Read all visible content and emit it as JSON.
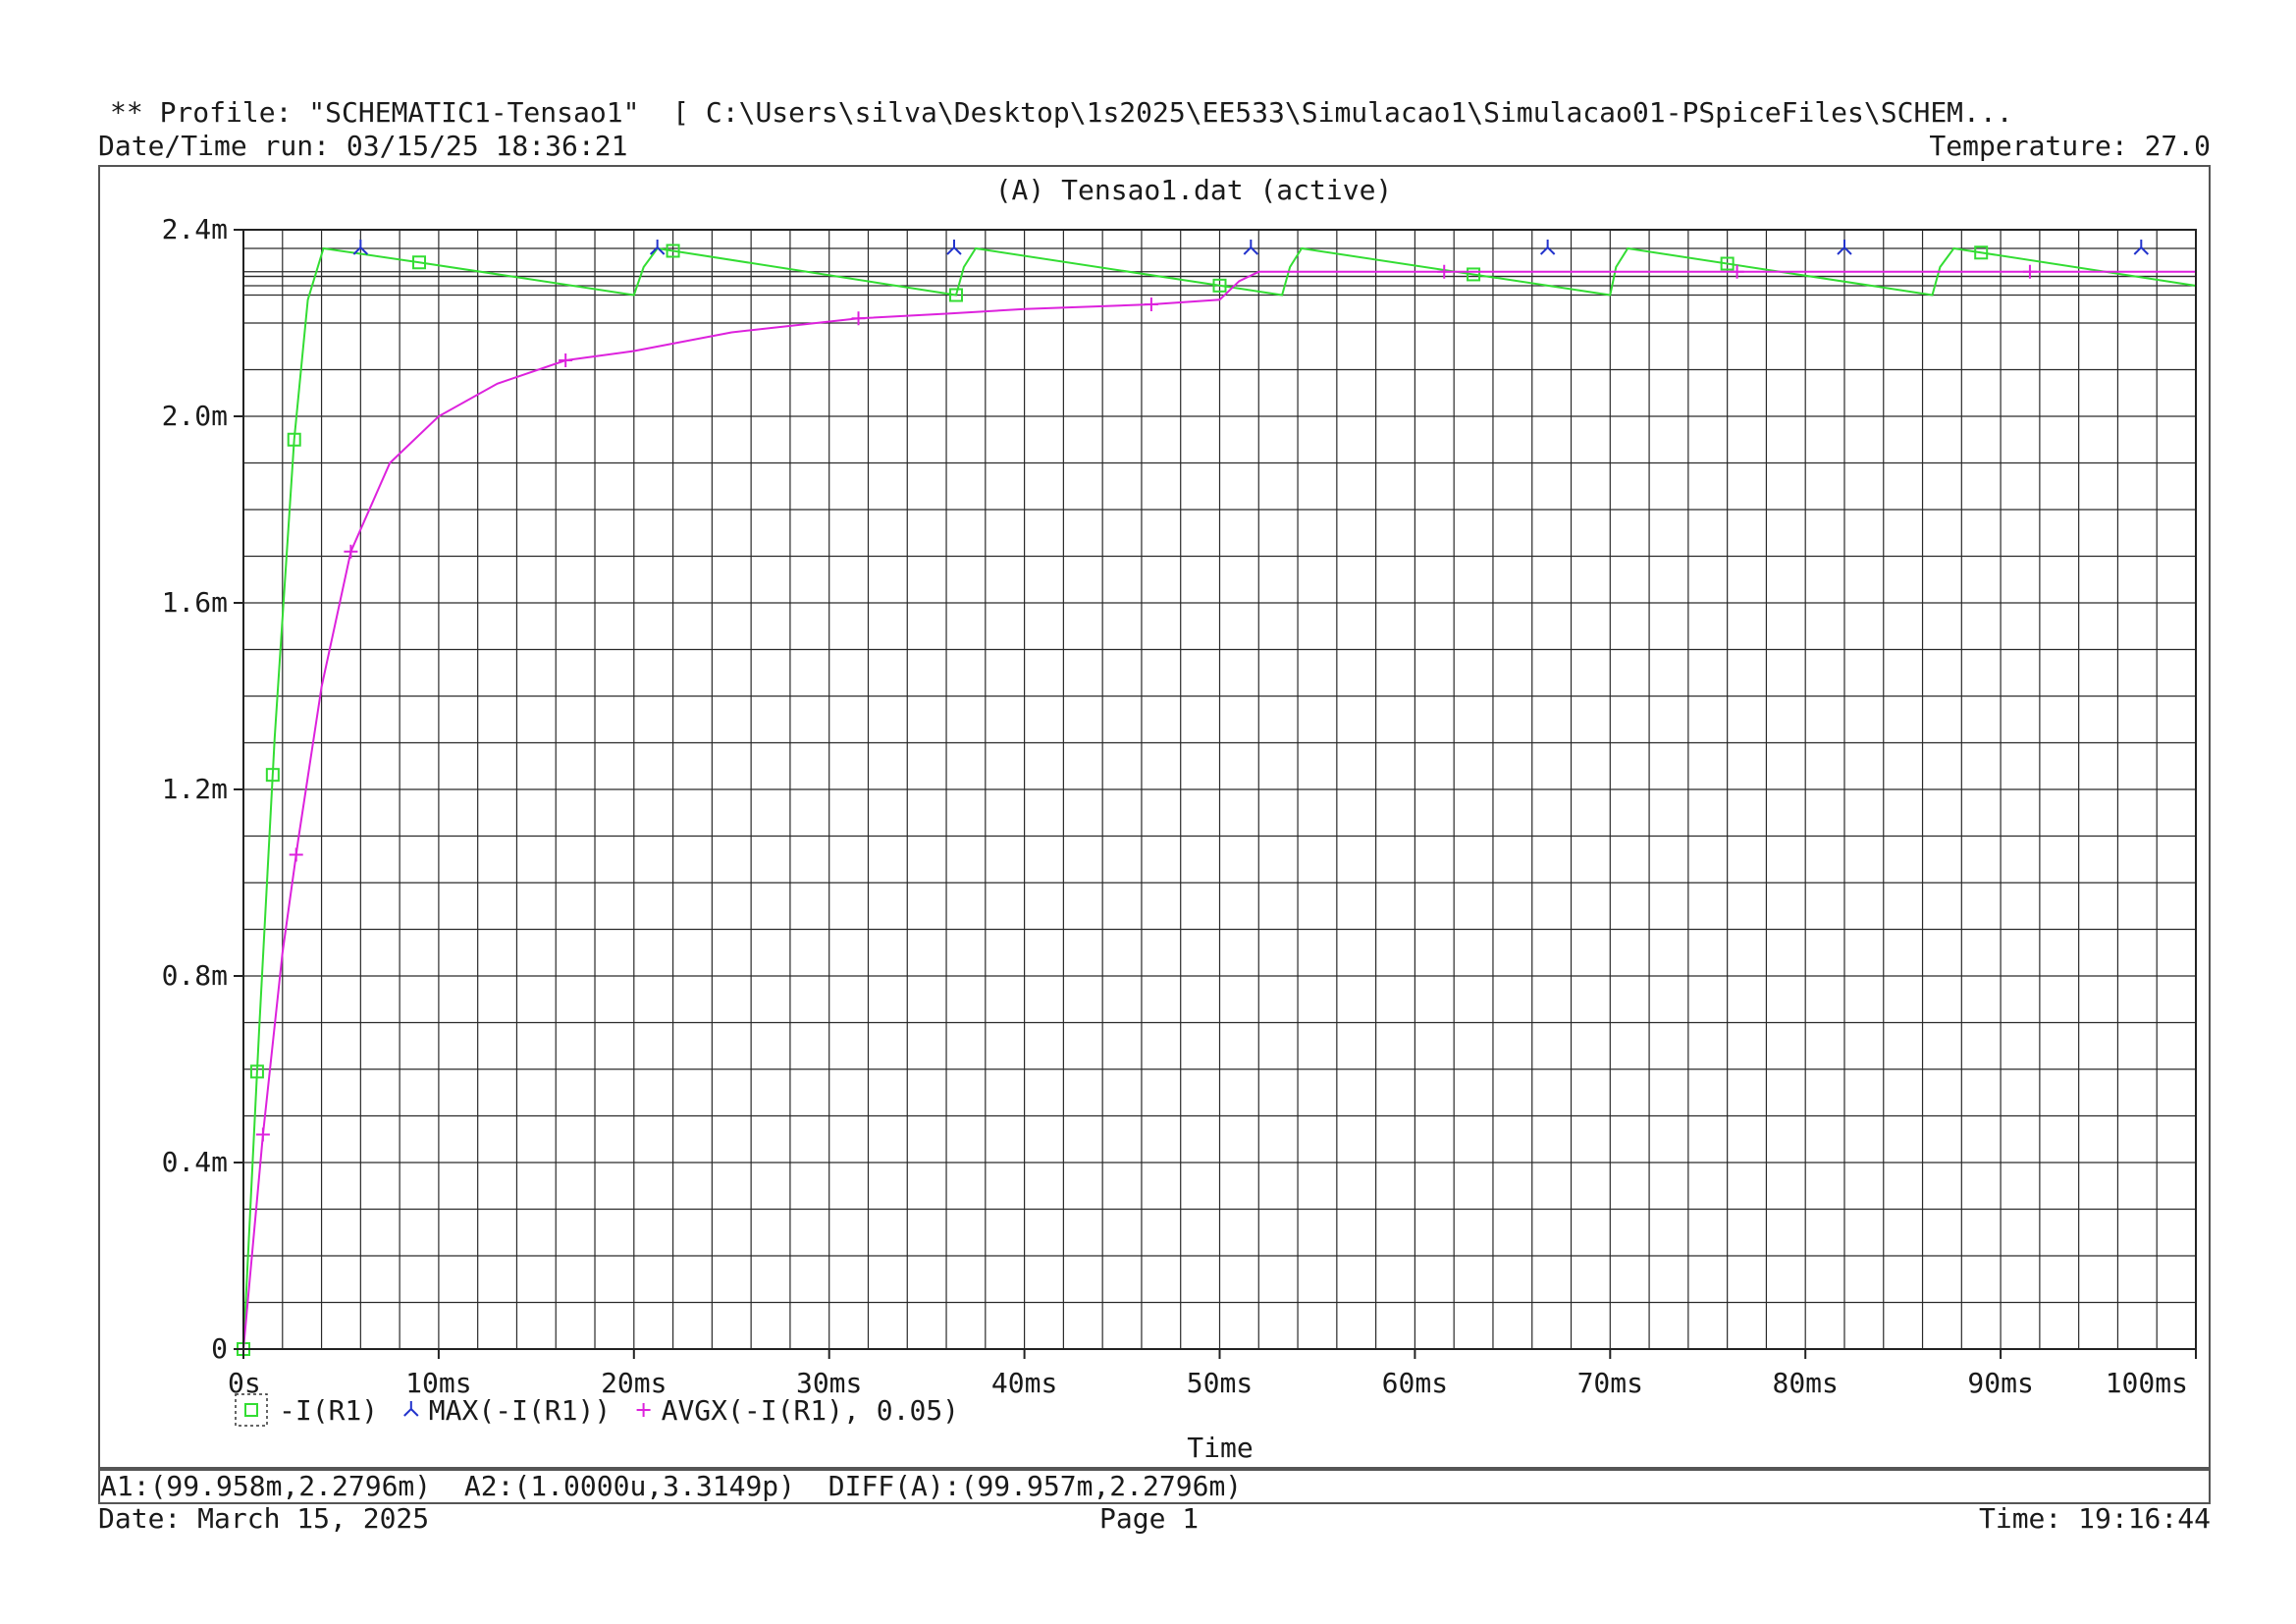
{
  "header": {
    "profile_line": "** Profile: \"SCHEMATIC1-Tensao1\"  [ C:\\Users\\silva\\Desktop\\1s2025\\EE533\\Simulacao1\\Simulacao01-PSpiceFiles\\SCHEM...",
    "run_datetime": "Date/Time run: 03/15/25 18:36:21",
    "temperature": "Temperature: 27.0"
  },
  "plot": {
    "title": "(A) Tensao1.dat (active)",
    "xlabel": "Time"
  },
  "legend": [
    {
      "label": "-I(R1)",
      "symbol": "square",
      "color": "#33dd33"
    },
    {
      "label": "MAX(-I(R1))",
      "symbol": "tri",
      "color": "#2233cc"
    },
    {
      "label": "AVGX(-I(R1), 0.05)",
      "symbol": "plus",
      "color": "#dd22dd"
    }
  ],
  "cursor_line": "A1:(99.958m,2.2796m)  A2:(1.0000u,3.3149p)  DIFF(A):(99.957m,2.2796m)",
  "footer": {
    "date": "Date: March 15, 2025",
    "page": "Page 1",
    "time": "Time: 19:16:44"
  },
  "chart_data": {
    "type": "line",
    "title": "(A) Tensao1.dat (active)",
    "xlabel": "Time",
    "ylabel": "",
    "xlim": [
      0,
      100
    ],
    "x_unit": "ms",
    "ylim": [
      0,
      2.4
    ],
    "y_unit": "mA",
    "x_ticks": [
      0,
      10,
      20,
      30,
      40,
      50,
      60,
      70,
      80,
      90,
      100
    ],
    "x_tick_labels": [
      "0s",
      "10ms",
      "20ms",
      "30ms",
      "40ms",
      "50ms",
      "60ms",
      "70ms",
      "80ms",
      "90ms",
      "100ms"
    ],
    "y_ticks": [
      0,
      0.4,
      0.8,
      1.2,
      1.6,
      2.0,
      2.4
    ],
    "y_tick_labels": [
      "0",
      "0.4m",
      "0.8m",
      "1.2m",
      "1.6m",
      "2.0m",
      "2.4m"
    ],
    "grid": true,
    "series": [
      {
        "name": "-I(R1)",
        "color": "#33dd33",
        "marker": "square",
        "points": [
          [
            0,
            0
          ],
          [
            0.8,
            0.68
          ],
          [
            1.6,
            1.31
          ],
          [
            2.6,
            1.95
          ],
          [
            3.3,
            2.25
          ],
          [
            4.1,
            2.36
          ],
          [
            9,
            2.33
          ],
          [
            20,
            2.26
          ],
          [
            20.5,
            2.32
          ],
          [
            21.2,
            2.36
          ],
          [
            36.5,
            2.26
          ],
          [
            36.9,
            2.32
          ],
          [
            37.5,
            2.36
          ],
          [
            53.2,
            2.26
          ],
          [
            53.6,
            2.32
          ],
          [
            54.2,
            2.36
          ],
          [
            70,
            2.26
          ],
          [
            70.3,
            2.32
          ],
          [
            70.9,
            2.36
          ],
          [
            86.5,
            2.26
          ],
          [
            86.9,
            2.32
          ],
          [
            87.6,
            2.36
          ],
          [
            100,
            2.28
          ]
        ],
        "marker_x": [
          0,
          0.7,
          1.5,
          2.6,
          9,
          22,
          36.5,
          50,
          63,
          76,
          89
        ]
      },
      {
        "name": "MAX(-I(R1))",
        "color": "#2233cc",
        "marker": "tri",
        "points": [
          [
            6,
            2.36
          ],
          [
            21.2,
            2.36
          ],
          [
            36.4,
            2.36
          ],
          [
            51.6,
            2.36
          ],
          [
            66.8,
            2.36
          ],
          [
            82,
            2.36
          ],
          [
            97.2,
            2.36
          ]
        ],
        "marker_x": [
          6,
          21.2,
          36.4,
          51.6,
          66.8,
          82,
          97.2
        ]
      },
      {
        "name": "AVGX(-I(R1), 0.05)",
        "color": "#dd22dd",
        "marker": "plus",
        "points": [
          [
            0,
            0
          ],
          [
            1,
            0.46
          ],
          [
            2,
            0.85
          ],
          [
            2.8,
            1.09
          ],
          [
            4,
            1.42
          ],
          [
            5.5,
            1.71
          ],
          [
            7.5,
            1.9
          ],
          [
            10,
            2.0
          ],
          [
            13,
            2.07
          ],
          [
            16.5,
            2.12
          ],
          [
            20,
            2.14
          ],
          [
            25,
            2.18
          ],
          [
            31.5,
            2.21
          ],
          [
            36,
            2.22
          ],
          [
            40,
            2.23
          ],
          [
            46.5,
            2.24
          ],
          [
            50,
            2.25
          ],
          [
            51,
            2.29
          ],
          [
            52,
            2.31
          ],
          [
            100,
            2.31
          ]
        ],
        "marker_x": [
          1,
          2.7,
          5.5,
          16.5,
          31.5,
          46.5,
          61.5,
          76.5,
          91.5
        ]
      }
    ],
    "hlines": [
      2.36,
      2.31,
      2.28,
      2.3,
      2.26
    ]
  }
}
